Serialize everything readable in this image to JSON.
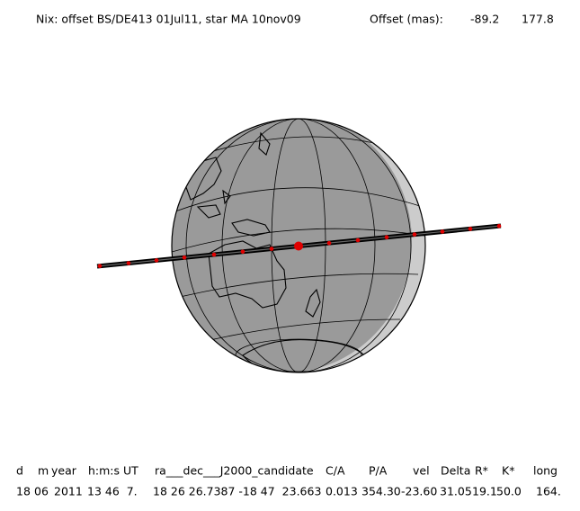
{
  "header": {
    "title": "Nix: offset BS/DE413 01Jul11, star MA 10nov09",
    "offset_label": "Offset (mas):",
    "offset_x": "-89.2",
    "offset_y": "177.8"
  },
  "table": {
    "columns": [
      "d",
      "m",
      "year",
      "h:m:s UT",
      "ra___dec___J2000_candidate",
      "C/A",
      "P/A",
      "vel",
      "Delta",
      "R*",
      "K*",
      "long"
    ],
    "rows": [
      [
        "18",
        "06",
        "2011",
        "13 46  7.",
        "18 26 26.7387 -18 47  23.663",
        "0.013",
        "354.30",
        "-23.60",
        "31.05",
        "19.1",
        "50.0",
        "164."
      ]
    ]
  }
}
